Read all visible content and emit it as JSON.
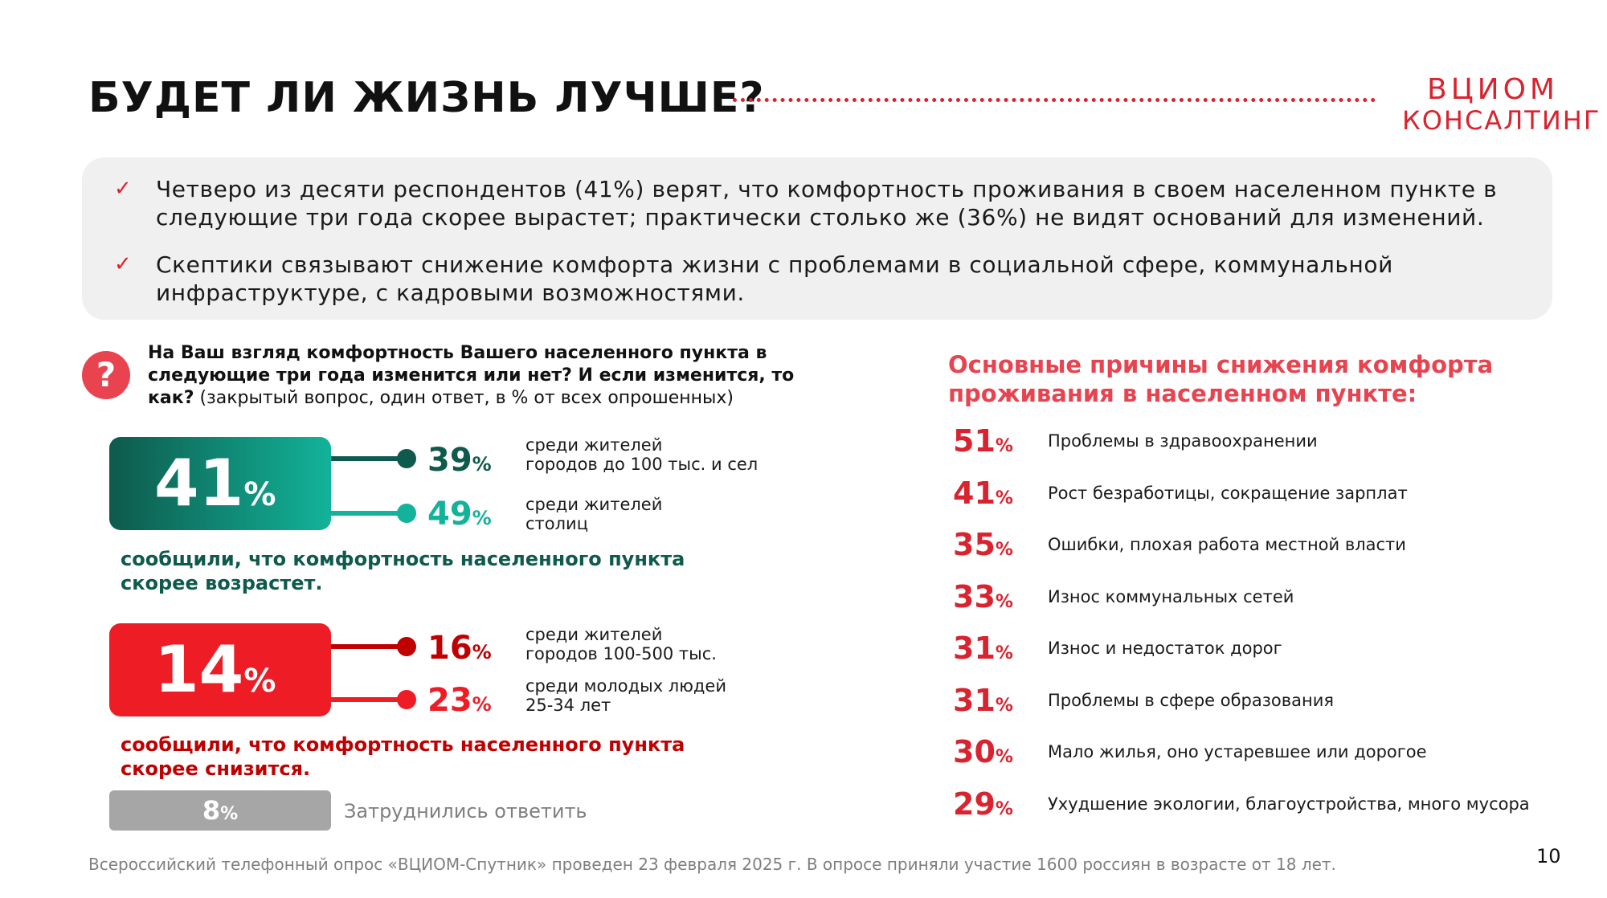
{
  "header": {
    "title": "БУДЕТ ЛИ ЖИЗНЬ ЛУЧШЕ?",
    "logo_line1": "ВЦИОМ",
    "logo_line2": "КОНСАЛТИНГ"
  },
  "summary": {
    "bullets": [
      "Четверо из десяти респондентов (41%) верят, что комфортность проживания в своем населенном пункте в следующие три года скорее вырастет; практически столько же (36%) не видят оснований для изменений.",
      "Скептики связывают снижение комфорта жизни с проблемами в социальной сфере, коммунальной инфраструктуре, с кадровыми возможностями."
    ],
    "check_glyph": "✓"
  },
  "question": {
    "icon_glyph": "?",
    "bold_text": "На Ваш взгляд комфортность Вашего населенного пункта в следующие три года изменится или нет? И если изменится, то как?",
    "note": " (закрытый вопрос, один ответ, в % от всех опрошенных)"
  },
  "increase": {
    "value": "41",
    "pct": "%",
    "color_from": "#0e5a4c",
    "color_to": "#12b39a",
    "sub": [
      {
        "value": "39",
        "pct": "%",
        "label_line1": "среди жителей",
        "label_line2": "городов до 100 тыс. и сел"
      },
      {
        "value": "49",
        "pct": "%",
        "label_line1": "среди жителей",
        "label_line2": "столиц"
      }
    ],
    "caption_line1": "сообщили, что комфортность населенного пункта",
    "caption_line2": "скорее возрастет."
  },
  "decrease": {
    "value": "14",
    "pct": "%",
    "color": "#ee1c25",
    "sub": [
      {
        "value": "16",
        "pct": "%",
        "label_line1": "среди жителей",
        "label_line2": "городов 100-500 тыс."
      },
      {
        "value": "23",
        "pct": "%",
        "label_line1": "среди молодых людей",
        "label_line2": "25-34 лет"
      }
    ],
    "caption_line1": "сообщили, что комфортность населенного пункта",
    "caption_line2": "скорее снизится."
  },
  "dont_know": {
    "value": "8",
    "pct": "%",
    "label": "Затруднились ответить"
  },
  "reasons": {
    "title": "Основные причины снижения комфорта проживания в населенном пункте:",
    "items": [
      {
        "value": "51",
        "pct": "%",
        "label": "Проблемы в здравоохранении"
      },
      {
        "value": "41",
        "pct": "%",
        "label": "Рост безработицы, сокращение зарплат"
      },
      {
        "value": "35",
        "pct": "%",
        "label": "Ошибки, плохая работа местной власти"
      },
      {
        "value": "33",
        "pct": "%",
        "label": "Износ коммунальных сетей"
      },
      {
        "value": "31",
        "pct": "%",
        "label": "Износ и недостаток дорог"
      },
      {
        "value": "31",
        "pct": "%",
        "label": "Проблемы в сфере образования"
      },
      {
        "value": "30",
        "pct": "%",
        "label": "Мало жилья, оно устаревшее или дорогое"
      },
      {
        "value": "29",
        "pct": "%",
        "label": "Ухудшение экологии, благоустройства, много мусора"
      }
    ]
  },
  "footer": {
    "note": "Всероссийский телефонный опрос «ВЦИОМ-Спутник» проведен 23 февраля 2025 г. В опросе приняли участие 1600 россиян в возрасте от 18 лет.",
    "page_number": "10"
  },
  "colors": {
    "accent_red": "#d9232f",
    "teal_dark": "#0e5a4c",
    "teal_light": "#12b39a",
    "red_dark": "#c00000",
    "red_box": "#ee1c25"
  }
}
